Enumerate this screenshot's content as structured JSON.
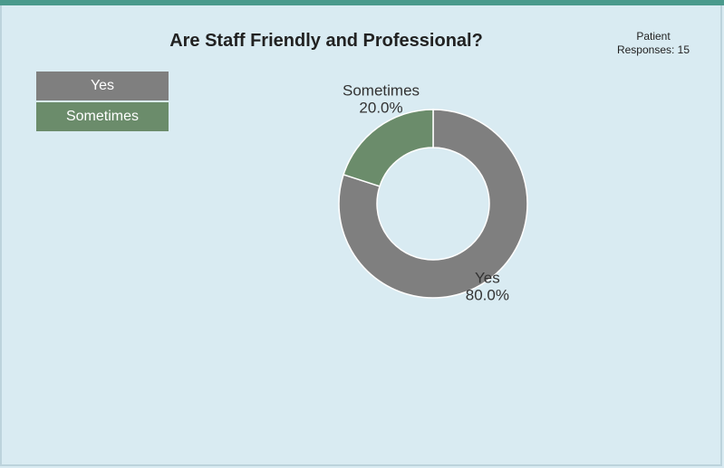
{
  "chart_data": {
    "type": "pie",
    "title": "Are Staff Friendly and Professional?",
    "responses_label": "Patient",
    "responses_value": "Responses: 15",
    "donut": true,
    "legend_position": "top-left",
    "slices": [
      {
        "label": "Yes",
        "value": 80.0,
        "percent_label": "80.0%",
        "color": "#7f7f7f"
      },
      {
        "label": "Sometimes",
        "value": 20.0,
        "percent_label": "20.0%",
        "color": "#6b8c6b"
      }
    ]
  }
}
